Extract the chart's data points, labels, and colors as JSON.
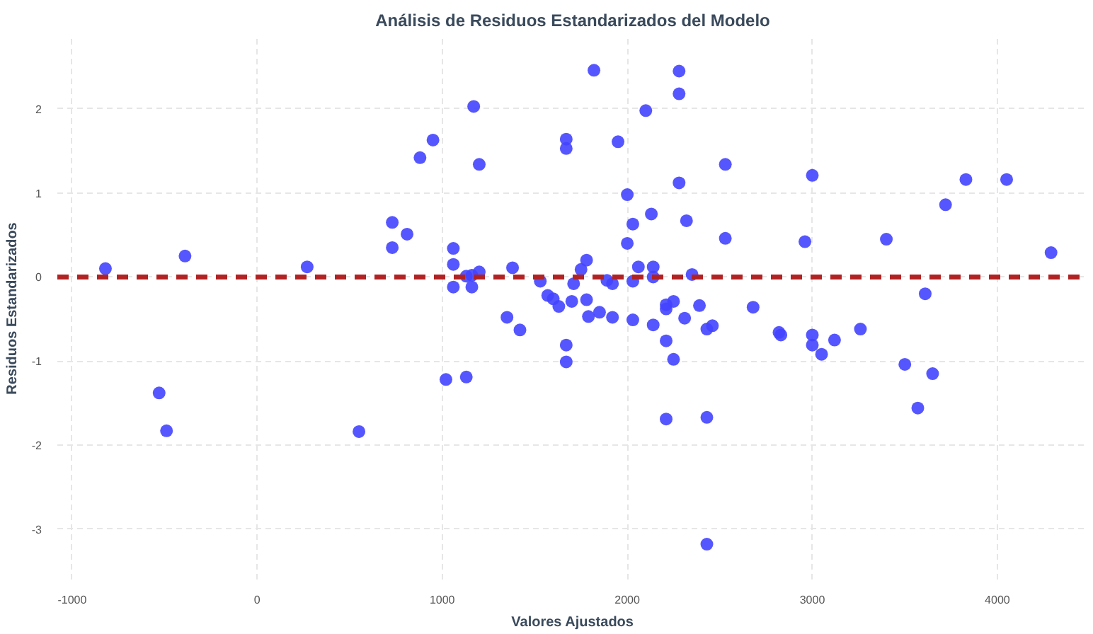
{
  "chart_data": {
    "type": "scatter",
    "title": "Análisis de Residuos Estandarizados del Modelo",
    "xlabel": "Valores Ajustados",
    "ylabel": "Residuos Estandarizados",
    "x": [
      -820,
      -390,
      -530,
      -490,
      270,
      550,
      730,
      730,
      810,
      880,
      950,
      1020,
      1060,
      1060,
      1060,
      1130,
      1170,
      1130,
      1160,
      1160,
      1200,
      1200,
      1350,
      1420,
      1380,
      1530,
      1570,
      1600,
      1630,
      1670,
      1670,
      1670,
      1670,
      1700,
      1710,
      1750,
      1780,
      1780,
      1790,
      1820,
      1850,
      1890,
      1920,
      1920,
      1950,
      2000,
      2000,
      2030,
      2030,
      2030,
      2060,
      2100,
      2130,
      2140,
      2140,
      2140,
      2210,
      2210,
      2210,
      2210,
      2250,
      2250,
      2280,
      2280,
      2280,
      2310,
      2350,
      2320,
      2390,
      2430,
      2460,
      2430,
      2430,
      2530,
      2530,
      2680,
      2820,
      2830,
      2960,
      3000,
      3000,
      3000,
      3050,
      3120,
      3260,
      3400,
      3500,
      3570,
      3610,
      3650,
      3720,
      3830,
      4050,
      4290
    ],
    "series": [
      {
        "color": "#4444ff",
        "values": [
          0.1,
          0.25,
          -1.38,
          -1.83,
          0.12,
          -1.84,
          0.65,
          0.35,
          0.51,
          1.42,
          1.63,
          -1.22,
          0.15,
          0.34,
          -0.12,
          -1.19,
          2.03,
          0.01,
          0.02,
          -0.12,
          0.06,
          1.34,
          -0.48,
          -0.63,
          0.11,
          -0.05,
          -0.22,
          -0.26,
          -0.35,
          -0.81,
          -1.01,
          1.64,
          1.53,
          -0.29,
          -0.08,
          0.09,
          0.2,
          -0.27,
          -0.47,
          2.46,
          -0.42,
          -0.04,
          -0.08,
          -0.48,
          1.61,
          0.98,
          0.4,
          0.63,
          -0.05,
          -0.51,
          0.12,
          1.98,
          0.75,
          0.12,
          0.0,
          -0.57,
          -0.76,
          -0.33,
          -0.38,
          -1.69,
          -0.29,
          -0.98,
          2.45,
          2.18,
          1.12,
          -0.49,
          0.03,
          0.67,
          -0.34,
          -0.62,
          -0.58,
          -1.67,
          -3.18,
          1.34,
          0.46,
          -0.36,
          -0.66,
          -0.69,
          0.42,
          1.21,
          -0.69,
          -0.81,
          -0.92,
          -0.75,
          -0.62,
          0.45,
          -1.04,
          -1.56,
          -0.2,
          -1.15,
          0.86,
          1.16,
          1.16,
          0.29
        ]
      }
    ],
    "marker": "circle",
    "xlim": [
      -1080,
      4490
    ],
    "ylim": [
      -3.6,
      2.85
    ],
    "xticks": [
      -1000,
      0,
      1000,
      2000,
      3000,
      4000
    ],
    "yticks": [
      -3,
      -2,
      -1,
      0,
      1,
      2
    ],
    "grid": true,
    "ref_lines": [
      {
        "axis": "y",
        "value": 0,
        "color": "#b22222",
        "line_style": "dashed"
      }
    ]
  }
}
